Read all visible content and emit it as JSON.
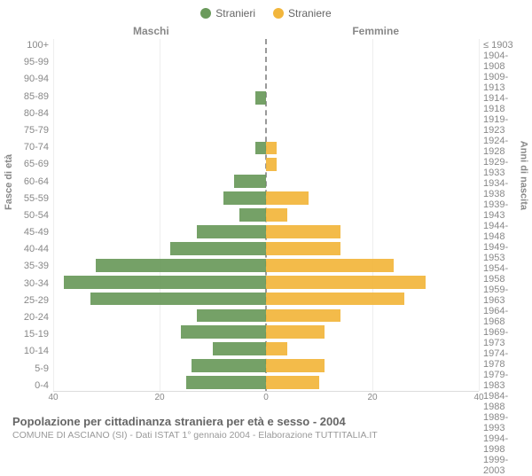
{
  "chart": {
    "type": "population-pyramid",
    "legend": [
      {
        "label": "Stranieri",
        "color": "#6a9a5b"
      },
      {
        "label": "Straniere",
        "color": "#f2b63c"
      }
    ],
    "header_left": "Maschi",
    "header_right": "Femmine",
    "y_left_title": "Fasce di età",
    "y_right_title": "Anni di nascita",
    "age_labels": [
      "100+",
      "95-99",
      "90-94",
      "85-89",
      "80-84",
      "75-79",
      "70-74",
      "65-69",
      "60-64",
      "55-59",
      "50-54",
      "45-49",
      "40-44",
      "35-39",
      "30-34",
      "25-29",
      "20-24",
      "15-19",
      "10-14",
      "5-9",
      "0-4"
    ],
    "year_labels": [
      "≤ 1903",
      "1904-1908",
      "1909-1913",
      "1914-1918",
      "1919-1923",
      "1924-1928",
      "1929-1933",
      "1934-1938",
      "1939-1943",
      "1944-1948",
      "1949-1953",
      "1954-1958",
      "1959-1963",
      "1964-1968",
      "1969-1973",
      "1974-1978",
      "1979-1983",
      "1984-1988",
      "1989-1993",
      "1994-1998",
      "1999-2003"
    ],
    "male_values": [
      0,
      0,
      0,
      2,
      0,
      0,
      2,
      0,
      6,
      8,
      5,
      13,
      18,
      32,
      38,
      33,
      13,
      16,
      10,
      14,
      15
    ],
    "female_values": [
      0,
      0,
      0,
      0,
      0,
      0,
      2,
      2,
      0,
      8,
      4,
      14,
      14,
      24,
      30,
      26,
      14,
      11,
      4,
      11,
      10
    ],
    "male_color": "#6a9a5b",
    "female_color": "#f2b63c",
    "x_max": 40,
    "x_ticks_left": [
      40,
      20,
      0
    ],
    "x_ticks_right": [
      20,
      40
    ],
    "grid_positions_pct_from_center": [
      0,
      50,
      100
    ],
    "background": "#ffffff",
    "gridline_color": "#eeeeee",
    "axis_text_color": "#888888",
    "fontsize_labels": 11,
    "fontsize_titles": 11
  },
  "title": "Popolazione per cittadinanza straniera per età e sesso - 2004",
  "subtitle": "COMUNE DI ASCIANO (SI) - Dati ISTAT 1° gennaio 2004 - Elaborazione TUTTITALIA.IT"
}
